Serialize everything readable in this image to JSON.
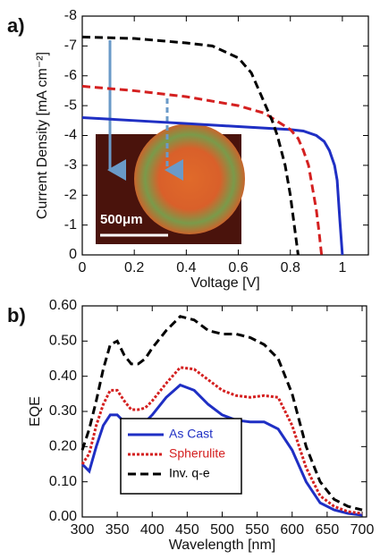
{
  "chart_data": [
    {
      "type": "line",
      "panel_label": "a)",
      "x_label": "Voltage [V]",
      "y_label": "Current Density [mA cm⁻²]",
      "inset_label": "500μm",
      "xlim": [
        0,
        1.1
      ],
      "xticks": [
        0,
        0.2,
        0.4,
        0.6,
        0.8,
        1
      ],
      "ylim": [
        0,
        -8
      ],
      "yticks": [
        0,
        -1,
        -2,
        -3,
        -4,
        -5,
        -6,
        -7,
        -8
      ],
      "series": [
        {
          "color": "#1f2fc4",
          "style": "solid",
          "x": [
            0,
            0.2,
            0.4,
            0.6,
            0.8,
            0.85,
            0.9,
            0.93,
            0.95,
            0.97,
            0.98,
            0.99,
            1.0
          ],
          "values": [
            -4.6,
            -4.5,
            -4.4,
            -4.3,
            -4.2,
            -4.15,
            -4.0,
            -3.8,
            -3.5,
            -3.0,
            -2.5,
            -1.2,
            0
          ]
        },
        {
          "color": "#d42020",
          "style": "dashed",
          "x": [
            0,
            0.2,
            0.4,
            0.6,
            0.7,
            0.8,
            0.83,
            0.85,
            0.87,
            0.88,
            0.89,
            0.9,
            0.91,
            0.92
          ],
          "values": [
            -5.65,
            -5.5,
            -5.3,
            -5.0,
            -4.75,
            -4.2,
            -3.9,
            -3.5,
            -3.0,
            -2.5,
            -2.0,
            -1.5,
            -0.8,
            0
          ]
        },
        {
          "color": "#000000",
          "style": "dashed",
          "x": [
            0,
            0.2,
            0.4,
            0.5,
            0.6,
            0.65,
            0.7,
            0.73,
            0.75,
            0.78,
            0.8,
            0.815,
            0.83
          ],
          "values": [
            -7.3,
            -7.25,
            -7.1,
            -7.0,
            -6.6,
            -6.1,
            -5.1,
            -4.5,
            -4.0,
            -3.0,
            -2.0,
            -1.0,
            0
          ]
        }
      ]
    },
    {
      "type": "line",
      "panel_label": "b)",
      "x_label": "Wavelength [nm]",
      "y_label": "EQE",
      "xlim": [
        300,
        700
      ],
      "xticks": [
        300,
        350,
        400,
        450,
        500,
        550,
        600,
        650,
        700
      ],
      "ylim": [
        0,
        0.6
      ],
      "yticks": [
        {
          "value": 0,
          "label": "0.00"
        },
        {
          "value": 0.1,
          "label": "0.10"
        },
        {
          "value": 0.2,
          "label": "0.20"
        },
        {
          "value": 0.3,
          "label": "0.30"
        },
        {
          "value": 0.4,
          "label": "0.40"
        },
        {
          "value": 0.5,
          "label": "0.50"
        },
        {
          "value": 0.6,
          "label": "0.60"
        }
      ],
      "legend": "lower-left",
      "x": [
        300,
        310,
        320,
        330,
        340,
        350,
        360,
        370,
        380,
        390,
        400,
        420,
        440,
        460,
        480,
        500,
        520,
        540,
        560,
        580,
        600,
        620,
        640,
        660,
        680,
        700
      ],
      "series": [
        {
          "name": "As Cast",
          "color": "#1f2fc4",
          "style": "solid",
          "values": [
            0.15,
            0.13,
            0.2,
            0.26,
            0.29,
            0.29,
            0.27,
            0.255,
            0.255,
            0.27,
            0.29,
            0.34,
            0.375,
            0.36,
            0.32,
            0.29,
            0.275,
            0.27,
            0.27,
            0.25,
            0.19,
            0.1,
            0.04,
            0.02,
            0.01,
            0.005
          ]
        },
        {
          "name": "Spherulite",
          "color": "#d42020",
          "style": "dotted",
          "values": [
            0.15,
            0.18,
            0.26,
            0.32,
            0.36,
            0.36,
            0.33,
            0.305,
            0.305,
            0.31,
            0.33,
            0.38,
            0.425,
            0.42,
            0.39,
            0.36,
            0.345,
            0.34,
            0.345,
            0.34,
            0.26,
            0.14,
            0.06,
            0.03,
            0.015,
            0.01
          ]
        },
        {
          "name": "Inv. q-e",
          "color": "#000000",
          "style": "dashed",
          "values": [
            0.19,
            0.25,
            0.33,
            0.42,
            0.49,
            0.5,
            0.46,
            0.435,
            0.435,
            0.45,
            0.48,
            0.53,
            0.57,
            0.56,
            0.53,
            0.52,
            0.52,
            0.51,
            0.49,
            0.45,
            0.35,
            0.2,
            0.1,
            0.05,
            0.03,
            0.02
          ]
        }
      ]
    }
  ]
}
